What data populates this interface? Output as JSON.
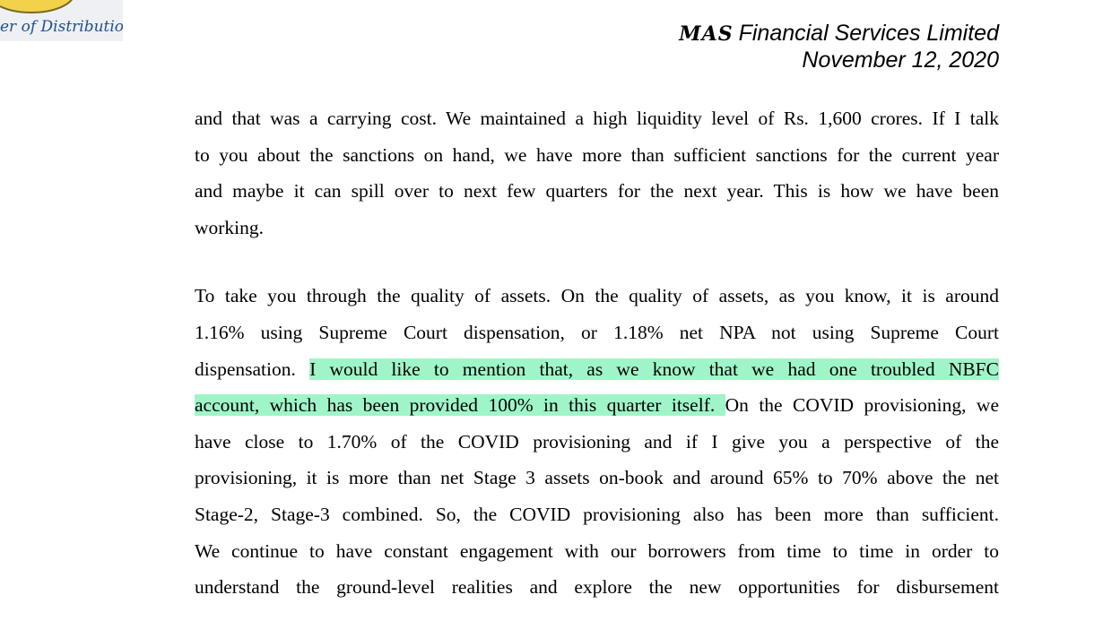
{
  "header": {
    "logo_text": "er of Distribution",
    "brand": "MAS",
    "company": "Financial Services Limited",
    "date": "November 12, 2020"
  },
  "paragraphs": [
    {
      "lines": [
        [
          {
            "text": "and that was a carrying cost. We maintained a high liquidity level of Rs. 1,600 crores. If I talk"
          }
        ],
        [
          {
            "text": "to you about the sanctions on hand, we have more than sufficient sanctions for the current year"
          }
        ],
        [
          {
            "text": "and maybe it can spill over to next few quarters for the next year. This is how we have been"
          }
        ],
        [
          {
            "text": "working."
          }
        ]
      ]
    },
    {
      "lines": [
        [
          {
            "text": "To take you through the quality of assets. On the quality of assets, as you know, it is around"
          }
        ],
        [
          {
            "text": "1.16% using Supreme Court dispensation, or 1.18% net NPA not using Supreme Court"
          }
        ],
        [
          {
            "text": "dispensation. "
          },
          {
            "text": "I would like to mention that, as we know that we had one troubled NBFC",
            "highlight": true
          }
        ],
        [
          {
            "text": "account, which has been provided 100% in this quarter itself. ",
            "highlight": true
          },
          {
            "text": "On the COVID provisioning, we"
          }
        ],
        [
          {
            "text": "have close to 1.70% of the COVID provisioning and if I give you a perspective of the"
          }
        ],
        [
          {
            "text": "provisioning, it is more than net Stage 3 assets on-book and around 65% to 70% above the net"
          }
        ],
        [
          {
            "text": "Stage-2, Stage-3 combined. So, the COVID provisioning also has been more than sufficient."
          }
        ],
        [
          {
            "text": "We continue to have constant engagement with our borrowers from time to time in order to"
          }
        ],
        [
          {
            "text": "understand the ground-level realities and explore the new opportunities for disbursement"
          }
        ]
      ]
    }
  ]
}
